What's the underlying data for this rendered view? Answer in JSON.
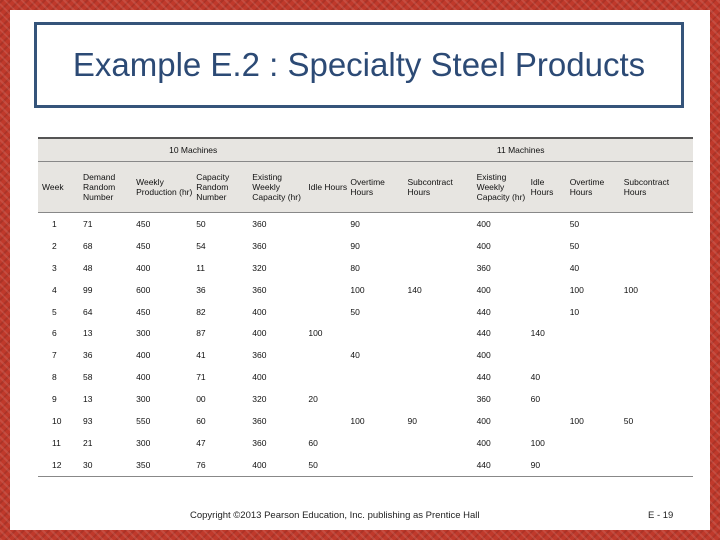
{
  "title": "Example E.2 : Specialty Steel Products",
  "table": {
    "groups": {
      "left": "10 Machines",
      "right": "11 Machines"
    },
    "headers": [
      "Week",
      "Demand Random Number",
      "Weekly Production (hr)",
      "Capacity Random Number",
      "Existing Weekly Capacity (hr)",
      "Idle Hours",
      "Overtime Hours",
      "Subcontract Hours",
      "Existing Weekly Capacity (hr)",
      "Idle Hours",
      "Overtime Hours",
      "Subcontract Hours"
    ],
    "rows": [
      [
        "1",
        "71",
        "450",
        "50",
        "360",
        "",
        "90",
        "",
        "400",
        "",
        "50",
        ""
      ],
      [
        "2",
        "68",
        "450",
        "54",
        "360",
        "",
        "90",
        "",
        "400",
        "",
        "50",
        ""
      ],
      [
        "3",
        "48",
        "400",
        "11",
        "320",
        "",
        "80",
        "",
        "360",
        "",
        "40",
        ""
      ],
      [
        "4",
        "99",
        "600",
        "36",
        "360",
        "",
        "100",
        "140",
        "400",
        "",
        "100",
        "100"
      ],
      [
        "5",
        "64",
        "450",
        "82",
        "400",
        "",
        "50",
        "",
        "440",
        "",
        "10",
        ""
      ],
      [
        "6",
        "13",
        "300",
        "87",
        "400",
        "100",
        "",
        "",
        "440",
        "140",
        "",
        ""
      ],
      [
        "7",
        "36",
        "400",
        "41",
        "360",
        "",
        "40",
        "",
        "400",
        "",
        "",
        ""
      ],
      [
        "8",
        "58",
        "400",
        "71",
        "400",
        "",
        "",
        "",
        "440",
        "40",
        "",
        ""
      ],
      [
        "9",
        "13",
        "300",
        "00",
        "320",
        "20",
        "",
        "",
        "360",
        "60",
        "",
        ""
      ],
      [
        "10",
        "93",
        "550",
        "60",
        "360",
        "",
        "100",
        "90",
        "400",
        "",
        "100",
        "50"
      ],
      [
        "11",
        "21",
        "300",
        "47",
        "360",
        "60",
        "",
        "",
        "400",
        "100",
        "",
        ""
      ],
      [
        "12",
        "30",
        "350",
        "76",
        "400",
        "50",
        "",
        "",
        "440",
        "90",
        "",
        ""
      ]
    ]
  },
  "footer": "Copyright ©2013 Pearson Education, Inc. publishing as Prentice Hall",
  "page_number": "E - 19",
  "colors": {
    "frame": "#c0392b",
    "title": "#2c4a75",
    "title_border": "#35547a",
    "header_bg": "#e7e5e1"
  }
}
